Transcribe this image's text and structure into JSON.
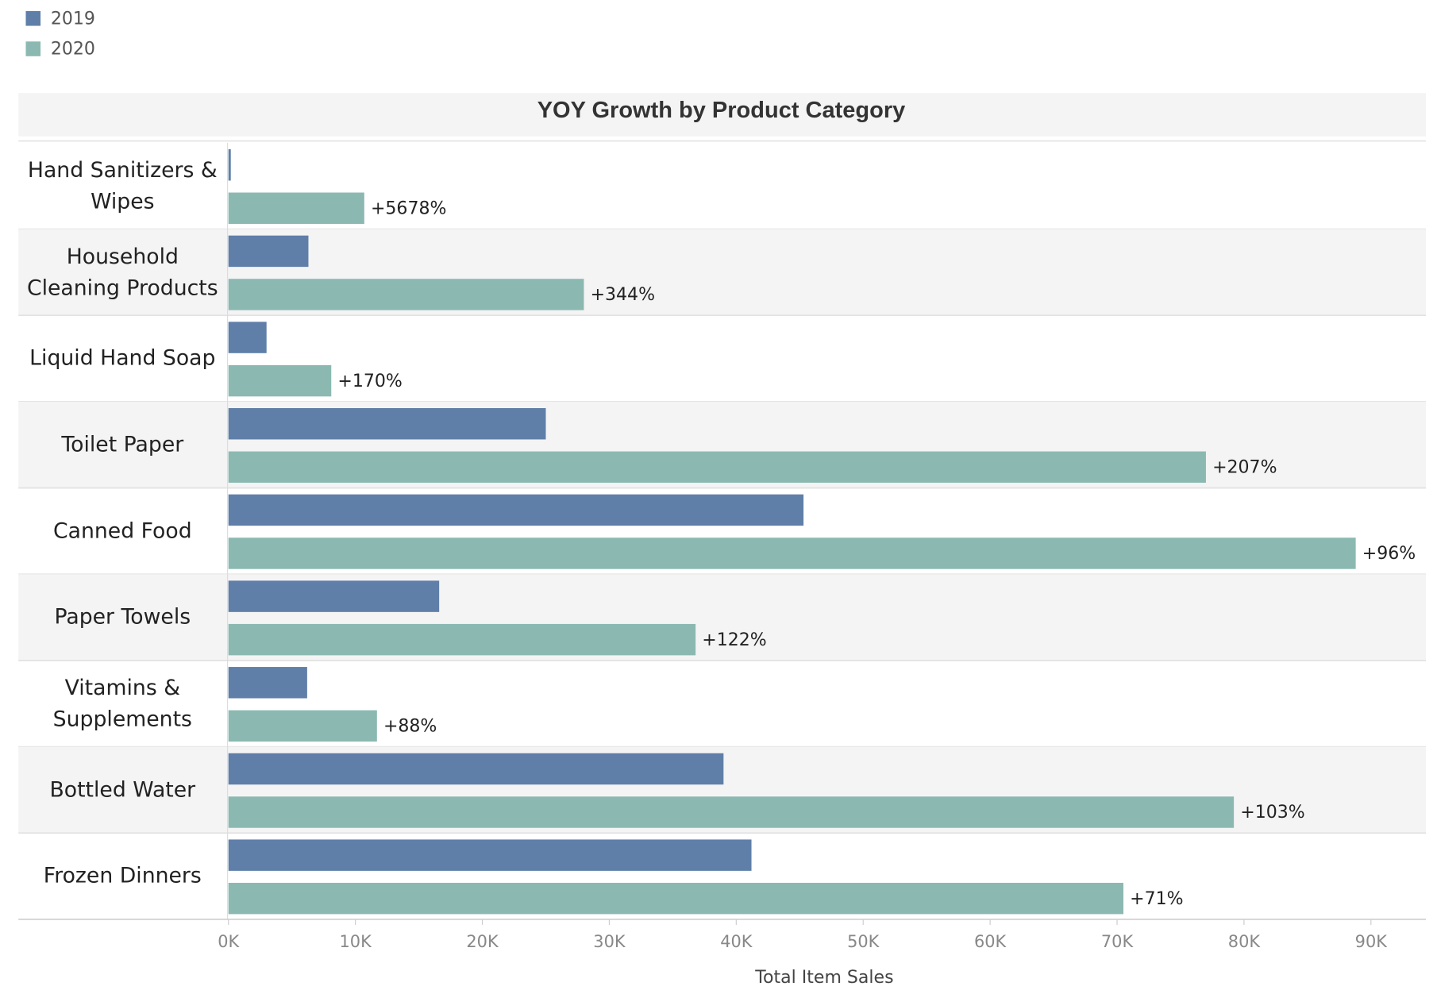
{
  "chart_data": {
    "type": "bar",
    "orientation": "horizontal",
    "title": "YOY Growth by Product Category",
    "x_label": "Total Item Sales",
    "categories": [
      "Hand Sanitizers & Wipes",
      "Household Cleaning Products",
      "Liquid Hand Soap",
      "Toilet Paper",
      "Canned Food",
      "Paper Towels",
      "Vitamins & Supplements",
      "Bottled Water",
      "Frozen Dinners"
    ],
    "series": [
      {
        "name": "2019",
        "color": "#5f7fa8",
        "values": [
          185,
          6300,
          3000,
          25000,
          45300,
          16600,
          6200,
          39000,
          41200
        ]
      },
      {
        "name": "2020",
        "color": "#8bb9b2",
        "values": [
          10700,
          28000,
          8100,
          77000,
          88800,
          36800,
          11700,
          79200,
          70500
        ]
      }
    ],
    "annotations": [
      "+5678%",
      "+344%",
      "+170%",
      "+207%",
      "+96%",
      "+122%",
      "+88%",
      "+103%",
      "+71%"
    ],
    "xlim": [
      0,
      92300
    ],
    "xticks": [
      {
        "value": 0,
        "label": "0K"
      },
      {
        "value": 10000,
        "label": "10K"
      },
      {
        "value": 20000,
        "label": "20K"
      },
      {
        "value": 30000,
        "label": "30K"
      },
      {
        "value": 40000,
        "label": "40K"
      },
      {
        "value": 50000,
        "label": "50K"
      },
      {
        "value": 60000,
        "label": "60K"
      },
      {
        "value": 70000,
        "label": "70K"
      },
      {
        "value": 80000,
        "label": "80K"
      },
      {
        "value": 90000,
        "label": "90K"
      }
    ],
    "legend": "top-left"
  }
}
